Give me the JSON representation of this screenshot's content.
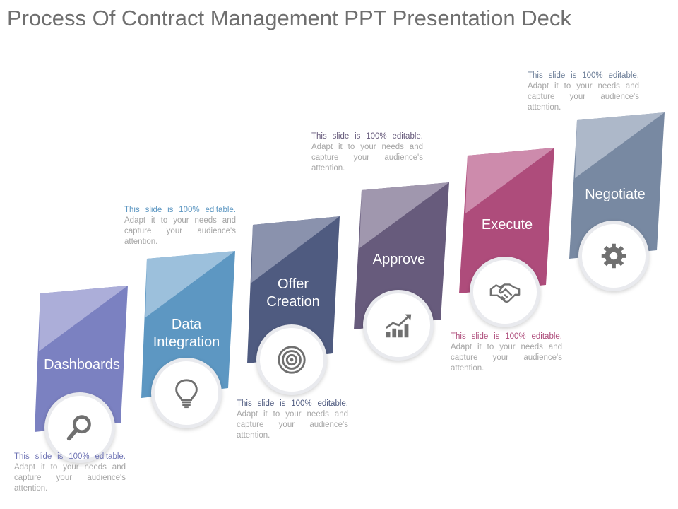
{
  "title": "Process Of Contract Management PPT Presentation Deck",
  "steps": [
    {
      "label": "Dashboards",
      "icon": "magnifier-icon",
      "color": "#7b81c1",
      "fold": "#acaed9",
      "note": {
        "lead": "This slide is 100% editable.",
        "rest": "Adapt it to your needs and capture your audience's attention.",
        "lead_color": "#6f74b5"
      }
    },
    {
      "label": "Data\nIntegration",
      "icon": "lightbulb-icon",
      "color": "#5d97c2",
      "fold": "#9cc0dc",
      "note": {
        "lead": "This slide is 100% editable.",
        "rest": "Adapt it to your needs and capture your audience's attention.",
        "lead_color": "#5d97c2"
      }
    },
    {
      "label": "Offer\nCreation",
      "icon": "target-icon",
      "color": "#4f5b80",
      "fold": "#8a92ad",
      "note": {
        "lead": "This slide is 100% editable.",
        "rest": "Adapt it to your needs and capture your audience's attention.",
        "lead_color": "#4f5b80"
      }
    },
    {
      "label": "Approve",
      "icon": "growth-chart-icon",
      "color": "#675b7c",
      "fold": "#a097ae",
      "note": {
        "lead": "This slide is 100% editable.",
        "rest": "Adapt it to your needs and capture your audience's attention.",
        "lead_color": "#675b7c"
      }
    },
    {
      "label": "Execute",
      "icon": "handshake-icon",
      "color": "#ae4c7b",
      "fold": "#cd8bac",
      "note": {
        "lead": "This slide is 100% editable.",
        "rest": "Adapt it to your needs and capture your audience's attention.",
        "lead_color": "#ae4c7b"
      }
    },
    {
      "label": "Negotiate",
      "icon": "gear-icon",
      "color": "#7889a2",
      "fold": "#adb8c9",
      "note": {
        "lead": "This slide is 100% editable.",
        "rest": "Adapt it to your needs and capture your audience's attention.",
        "lead_color": "#6a7c96"
      }
    }
  ]
}
